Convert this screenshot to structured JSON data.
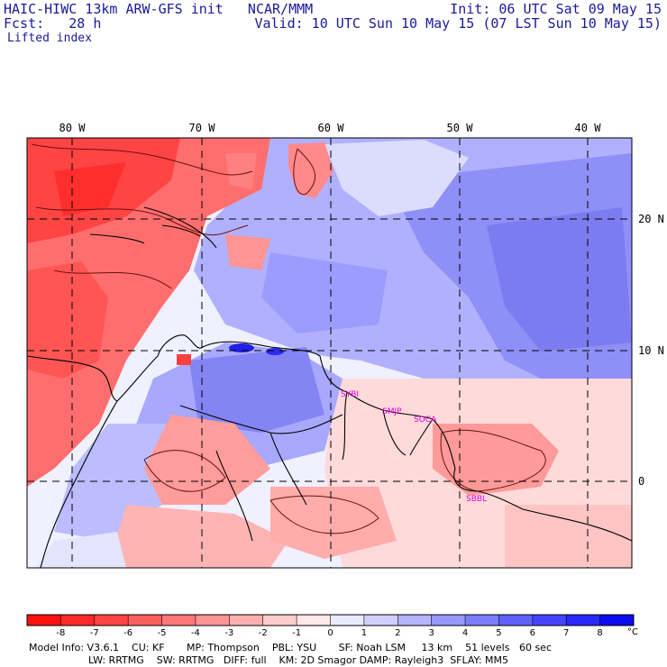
{
  "header": {
    "model_title": "HAIC-HIWC 13km ARW-GFS init   NCAR/MMM",
    "init_time": "Init: 06 UTC Sat 09 May 15",
    "forecast_label": "Fcst:   28 h",
    "valid_time": "Valid: 10 UTC Sun 10 May 15 (07 LST Sun 10 May 15)",
    "field_name": "Lifted index"
  },
  "map": {
    "lon_labels": [
      "80 W",
      "70 W",
      "60 W",
      "50 W",
      "40 W"
    ],
    "lat_labels": [
      "20 N",
      "10 N",
      "0"
    ],
    "stations": [
      "SYBI",
      "SMJP",
      "SOCA",
      "SBBL"
    ]
  },
  "colorbar": {
    "ticks": [
      "-8",
      "-7",
      "-6",
      "-5",
      "-4",
      "-3",
      "-2",
      "-1",
      "0",
      "1",
      "2",
      "3",
      "4",
      "5",
      "6",
      "7",
      "8"
    ],
    "unit": "°C",
    "colors": [
      "#ff1010",
      "#ff2a2a",
      "#ff4444",
      "#ff5e5e",
      "#ff7878",
      "#ff9494",
      "#ffb0b0",
      "#ffcccc",
      "#ffe8e8",
      "#ebebff",
      "#d0d0ff",
      "#b4b4ff",
      "#9898ff",
      "#7c7cff",
      "#6060ff",
      "#4444ff",
      "#2828ff",
      "#0c0cf0"
    ]
  },
  "footer": {
    "line1": "Model Info: V3.6.1    CU: KF       MP: Thompson    PBL: YSU       SF: Noah LSM     13 km    51 levels   60 sec",
    "line2": "LW: RRTMG    SW: RRTMG   DIFF: full    KM: 2D Smagor DAMP: Rayleigh3  SFLAY: MM5"
  }
}
